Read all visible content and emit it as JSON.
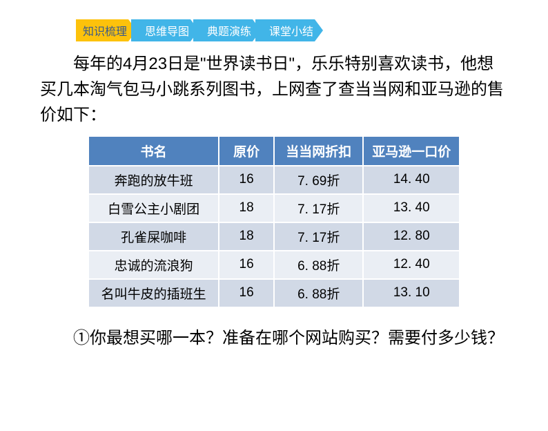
{
  "nav": {
    "tabs": [
      {
        "label": "知识梳理",
        "type": "orange"
      },
      {
        "label": "思维导图",
        "type": "blue"
      },
      {
        "label": "典题演练",
        "type": "blue"
      },
      {
        "label": "课堂小结",
        "type": "blue"
      }
    ]
  },
  "paragraph": "每年的4月23日是\"世界读书日\"，乐乐特别喜欢读书，他想买几本淘气包马小跳系列图书，上网查了查当当网和亚马逊的售价如下：",
  "table": {
    "headers": [
      "书名",
      "原价",
      "当当网折扣",
      "亚马逊一口价"
    ],
    "rows": [
      [
        "奔跑的放牛班",
        "16",
        "7. 69折",
        "14. 40"
      ],
      [
        "白雪公主小剧团",
        "18",
        "7. 17折",
        "13. 40"
      ],
      [
        "孔雀屎咖啡",
        "18",
        "7. 17折",
        "12. 80"
      ],
      [
        "忠诚的流浪狗",
        "16",
        "6. 88折",
        "12. 40"
      ],
      [
        "名叫牛皮的插班生",
        "16",
        "6. 88折",
        "13. 10"
      ]
    ],
    "header_bg": "#5082be",
    "header_color": "#ffffff",
    "row_odd_bg": "#d1d9e6",
    "row_even_bg": "#eaeef4",
    "border_color": "#ffffff",
    "font_size": 19
  },
  "question": "①你最想买哪一本？准备在哪个网站购买？需要付多少钱？",
  "colors": {
    "orange_tab": "#fdc20b",
    "blue_tab": "#41b5e8",
    "orange_text": "#3a5a8a"
  }
}
